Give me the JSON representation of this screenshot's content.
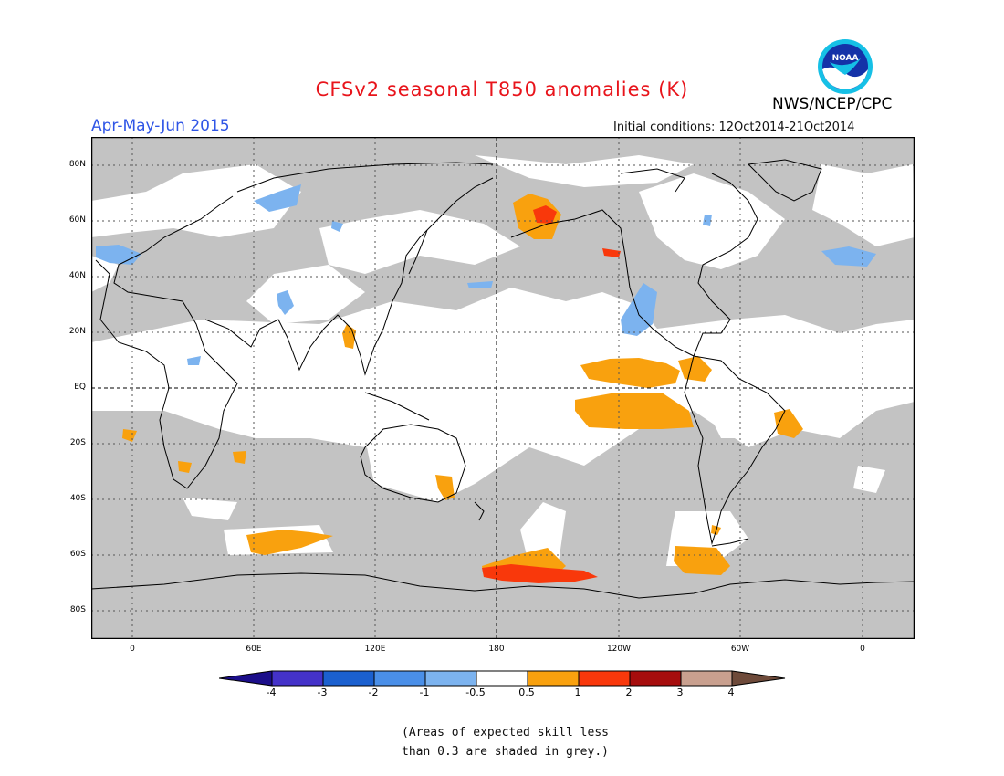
{
  "header": {
    "title": "CFSv2 seasonal T850 anomalies (K)",
    "period": "Apr-May-Jun 2015",
    "initial_conditions": "Initial conditions: 12Oct2014-21Oct2014",
    "agency": "NWS/NCEP/CPC",
    "logo_text": "NOAA"
  },
  "axes": {
    "lat_labels": [
      "80N",
      "60N",
      "40N",
      "20N",
      "EQ",
      "20S",
      "40S",
      "60S",
      "80S"
    ],
    "lon_labels": [
      "0",
      "60E",
      "120E",
      "180",
      "120W",
      "60W",
      "0"
    ]
  },
  "legend": {
    "labels": [
      "-4",
      "-3",
      "-2",
      "-1",
      "-0.5",
      "0.5",
      "1",
      "2",
      "3",
      "4"
    ],
    "colors": [
      "#1b0e8a",
      "#4432c9",
      "#1b60cf",
      "#4a8fe8",
      "#7cb3ef",
      "#ffffff",
      "#f9a10e",
      "#f9380b",
      "#a60d0d",
      "#c9a08f",
      "#6e4a3a"
    ]
  },
  "map_colors": {
    "grey": "#c3c3c3",
    "coast": "#000000"
  },
  "footnote": {
    "line1": "(Areas of expected skill less",
    "line2": "than 0.3 are shaded in grey.)"
  }
}
